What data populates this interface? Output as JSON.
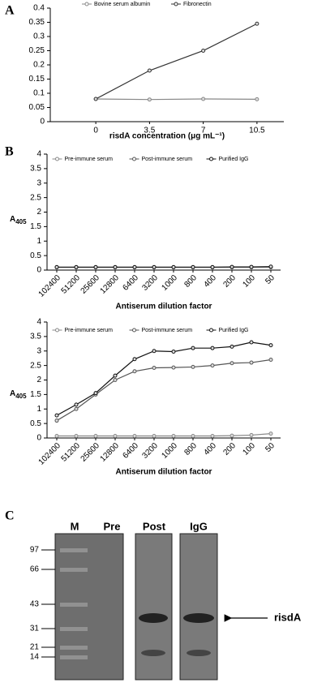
{
  "chart_data": [
    {
      "type": "line",
      "panel_label": "A",
      "categories": [
        "0",
        "3.5",
        "7",
        "10.5"
      ],
      "x_label": "risdA concentration (μg mL⁻¹)",
      "ylim": [
        0,
        0.4
      ],
      "yticks": [
        0,
        0.05,
        0.1,
        0.15,
        0.2,
        0.25,
        0.3,
        0.35,
        0.4
      ],
      "series": [
        {
          "name": "Bovine serum albumin",
          "color": "#888888",
          "values": [
            0.08,
            0.078,
            0.08,
            0.079
          ]
        },
        {
          "name": "Fibronectin",
          "color": "#333333",
          "values": [
            0.08,
            0.18,
            0.25,
            0.345
          ]
        }
      ]
    },
    {
      "type": "line",
      "panel_label": "B",
      "categories": [
        "102400",
        "51200",
        "25600",
        "12800",
        "6400",
        "3200",
        "1000",
        "800",
        "400",
        "200",
        "100",
        "50"
      ],
      "x_label": "Antiserum dilution factor",
      "y_label": "A",
      "y_label_subscript": "405",
      "ylim": [
        0,
        4
      ],
      "yticks": [
        0,
        0.5,
        1,
        1.5,
        2,
        2.5,
        3,
        3.5,
        4
      ],
      "series": [
        {
          "name": "Pre-immune serum",
          "color": "#888888",
          "values": [
            0.1,
            0.1,
            0.1,
            0.1,
            0.1,
            0.1,
            0.1,
            0.1,
            0.1,
            0.1,
            0.1,
            0.1
          ]
        },
        {
          "name": "Post-immune serum",
          "color": "#555555",
          "values": [
            0.1,
            0.1,
            0.1,
            0.1,
            0.1,
            0.1,
            0.1,
            0.1,
            0.1,
            0.1,
            0.1,
            0.11
          ]
        },
        {
          "name": "Purified IgG",
          "color": "#111111",
          "values": [
            0.1,
            0.1,
            0.1,
            0.1,
            0.1,
            0.1,
            0.1,
            0.1,
            0.1,
            0.11,
            0.11,
            0.12
          ]
        }
      ]
    },
    {
      "type": "line",
      "categories": [
        "102400",
        "51200",
        "25600",
        "12800",
        "6400",
        "3200",
        "1000",
        "800",
        "400",
        "200",
        "100",
        "50"
      ],
      "x_label": "Antiserum dilution factor",
      "y_label": "A",
      "y_label_subscript": "405",
      "ylim": [
        0,
        4
      ],
      "yticks": [
        0,
        0.5,
        1,
        1.5,
        2,
        2.5,
        3,
        3.5,
        4
      ],
      "series": [
        {
          "name": "Pre-immune serum",
          "color": "#888888",
          "values": [
            0.07,
            0.07,
            0.07,
            0.07,
            0.07,
            0.07,
            0.07,
            0.07,
            0.07,
            0.08,
            0.1,
            0.15
          ]
        },
        {
          "name": "Post-immune serum",
          "color": "#555555",
          "values": [
            0.6,
            1.0,
            1.5,
            2.0,
            2.3,
            2.42,
            2.43,
            2.45,
            2.5,
            2.58,
            2.6,
            2.7
          ]
        },
        {
          "name": "Purified IgG",
          "color": "#111111",
          "values": [
            0.78,
            1.15,
            1.55,
            2.15,
            2.72,
            3.0,
            2.98,
            3.1,
            3.1,
            3.15,
            3.3,
            3.2
          ]
        }
      ]
    }
  ],
  "gel": {
    "panel_label": "C",
    "lanes": [
      "M",
      "Pre",
      "Post",
      "IgG"
    ],
    "markers": [
      "97",
      "66",
      "43",
      "31",
      "21",
      "14"
    ],
    "band_label": "risdA"
  }
}
